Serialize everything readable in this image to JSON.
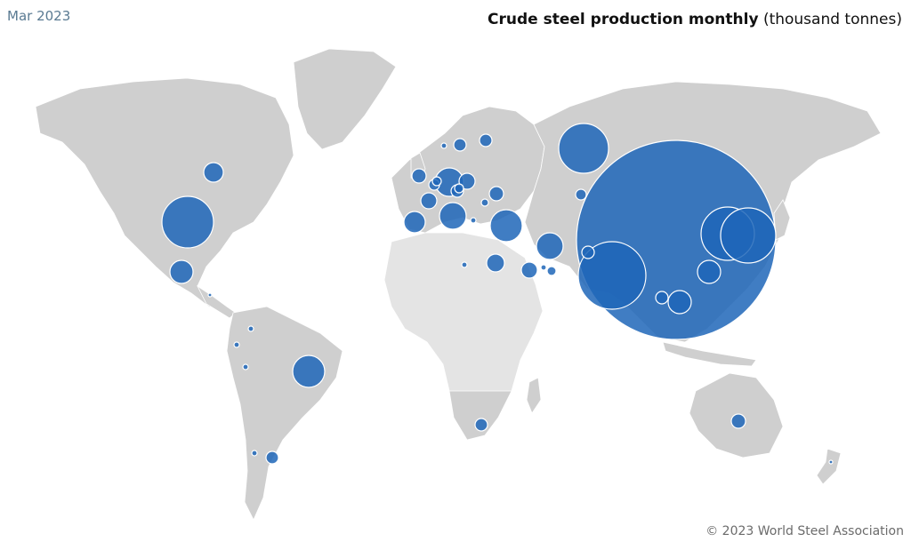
{
  "date_label": "Mar 2023",
  "title_bold": "Crude steel production monthly",
  "title_unit": "(thousand tonnes)",
  "footer": "© 2023 World Steel Association",
  "colors": {
    "bubble": "#1e66b8",
    "land": "#cfcfcf",
    "land_light": "#e4e4e4"
  }
}
